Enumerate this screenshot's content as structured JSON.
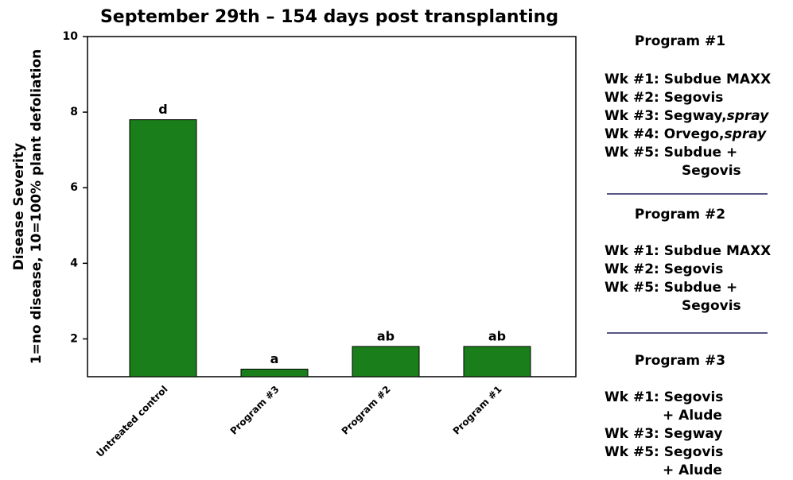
{
  "chart_data": {
    "type": "bar",
    "title": "September 29th – 154 days post transplanting",
    "ylabel": [
      "Disease Severity",
      "1=no disease, 10=100% plant defoliation"
    ],
    "categories": [
      "Untreated control",
      "Program #3",
      "Program #2",
      "Program #1"
    ],
    "values": [
      7.8,
      1.2,
      1.8,
      1.8
    ],
    "annotations": [
      "d",
      "a",
      "ab",
      "ab"
    ],
    "color": "#1a7f1a",
    "ylim": [
      1,
      10
    ],
    "yticks": [
      2,
      4,
      6,
      8,
      10
    ]
  },
  "side_panel": {
    "programs": [
      {
        "title": "Program #1",
        "steps": [
          {
            "text": "Wk #1: Subdue MAXX"
          },
          {
            "text": "Wk #2: Segovis"
          },
          {
            "text": "Wk #3: Segway,",
            "em": "spray"
          },
          {
            "text": "Wk #4: Orvego,",
            "em": "spray"
          },
          {
            "text": "Wk #5: Subdue +",
            "cont": "Segovis"
          }
        ]
      },
      {
        "title": "Program #2",
        "steps": [
          {
            "text": "Wk #1: Subdue MAXX"
          },
          {
            "text": "Wk #2: Segovis"
          },
          {
            "text": "Wk #5: Subdue +",
            "cont": "Segovis"
          }
        ]
      },
      {
        "title": "Program #3",
        "steps": [
          {
            "text": "Wk #1: Segovis",
            "cont": "+ Alude"
          },
          {
            "text": "Wk #3: Segway"
          },
          {
            "text": "Wk #5: Segovis",
            "cont": "+ Alude"
          }
        ]
      }
    ]
  }
}
